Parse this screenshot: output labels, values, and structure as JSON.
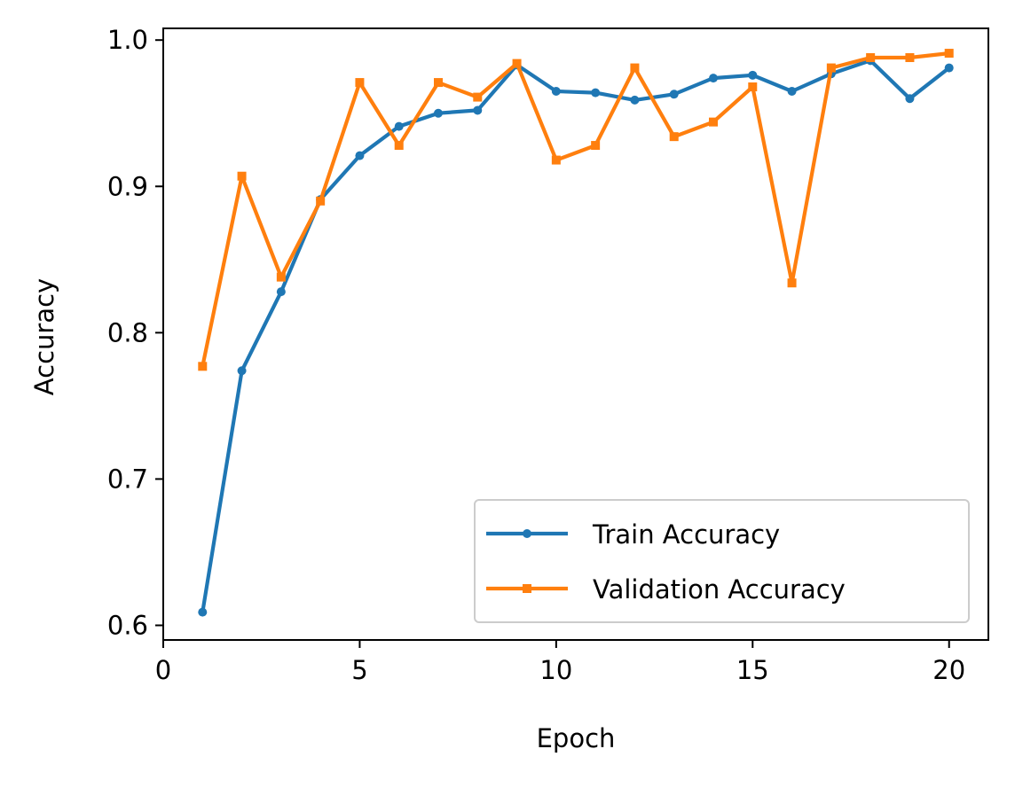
{
  "chart_data": {
    "type": "line",
    "title": "",
    "xlabel": "Epoch",
    "ylabel": "Accuracy",
    "xlim": [
      0,
      21
    ],
    "ylim": [
      0.59,
      1.008
    ],
    "xticks": [
      0,
      5,
      10,
      15,
      20
    ],
    "xtick_labels": [
      "0",
      "5",
      "10",
      "15",
      "20"
    ],
    "yticks": [
      0.6,
      0.7,
      0.8,
      0.9,
      1.0
    ],
    "ytick_labels": [
      "0.6",
      "0.7",
      "0.8",
      "0.9",
      "1.0"
    ],
    "grid": false,
    "legend_position": "lower-right",
    "x": [
      1,
      2,
      3,
      4,
      5,
      6,
      7,
      8,
      9,
      10,
      11,
      12,
      13,
      14,
      15,
      16,
      17,
      18,
      19,
      20
    ],
    "series": [
      {
        "name": "Train Accuracy",
        "color": "#1f77b4",
        "marker": "circle",
        "values": [
          0.609,
          0.774,
          0.828,
          0.891,
          0.921,
          0.941,
          0.95,
          0.952,
          0.983,
          0.965,
          0.964,
          0.959,
          0.963,
          0.974,
          0.976,
          0.965,
          0.977,
          0.986,
          0.96,
          0.981
        ]
      },
      {
        "name": "Validation Accuracy",
        "color": "#ff7f0e",
        "marker": "square",
        "values": [
          0.777,
          0.907,
          0.838,
          0.89,
          0.971,
          0.928,
          0.971,
          0.961,
          0.984,
          0.918,
          0.928,
          0.981,
          0.934,
          0.944,
          0.968,
          0.834,
          0.981,
          0.988,
          0.988,
          0.991
        ]
      }
    ]
  }
}
